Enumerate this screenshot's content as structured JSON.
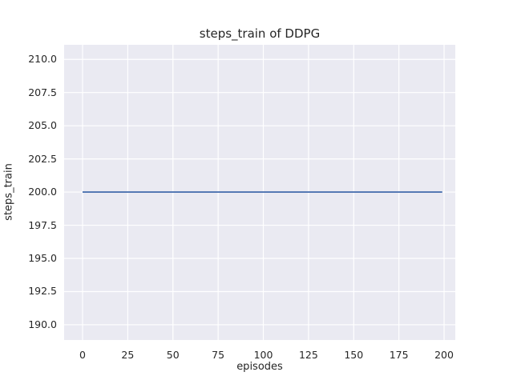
{
  "chart_data": {
    "type": "line",
    "title": "steps_train of DDPG",
    "xlabel": "episodes",
    "ylabel": "steps_train",
    "x_ticks": [
      0,
      25,
      50,
      75,
      100,
      125,
      150,
      175,
      200
    ],
    "x_tick_labels": [
      "0",
      "25",
      "50",
      "75",
      "100",
      "125",
      "150",
      "175",
      "200"
    ],
    "y_ticks": [
      190.0,
      192.5,
      195.0,
      197.5,
      200.0,
      202.5,
      205.0,
      207.5,
      210.0
    ],
    "y_tick_labels": [
      "190.0",
      "192.5",
      "195.0",
      "197.5",
      "200.0",
      "202.5",
      "205.0",
      "207.5",
      "210.0"
    ],
    "xlim": [
      -10.2,
      206.2
    ],
    "ylim": [
      188.85,
      211.1
    ],
    "grid": true,
    "legend": "none",
    "series": [
      {
        "name": "steps_train",
        "color": "#4C72B0",
        "x": [
          0,
          199
        ],
        "y": [
          200,
          200
        ],
        "note": "constant value 200 for all episodes 0-199"
      }
    ],
    "style": {
      "plot_background": "#EAEAF2",
      "grid_color": "#FFFFFF",
      "text_color": "#262626",
      "figure_background": "#FFFFFF"
    }
  }
}
